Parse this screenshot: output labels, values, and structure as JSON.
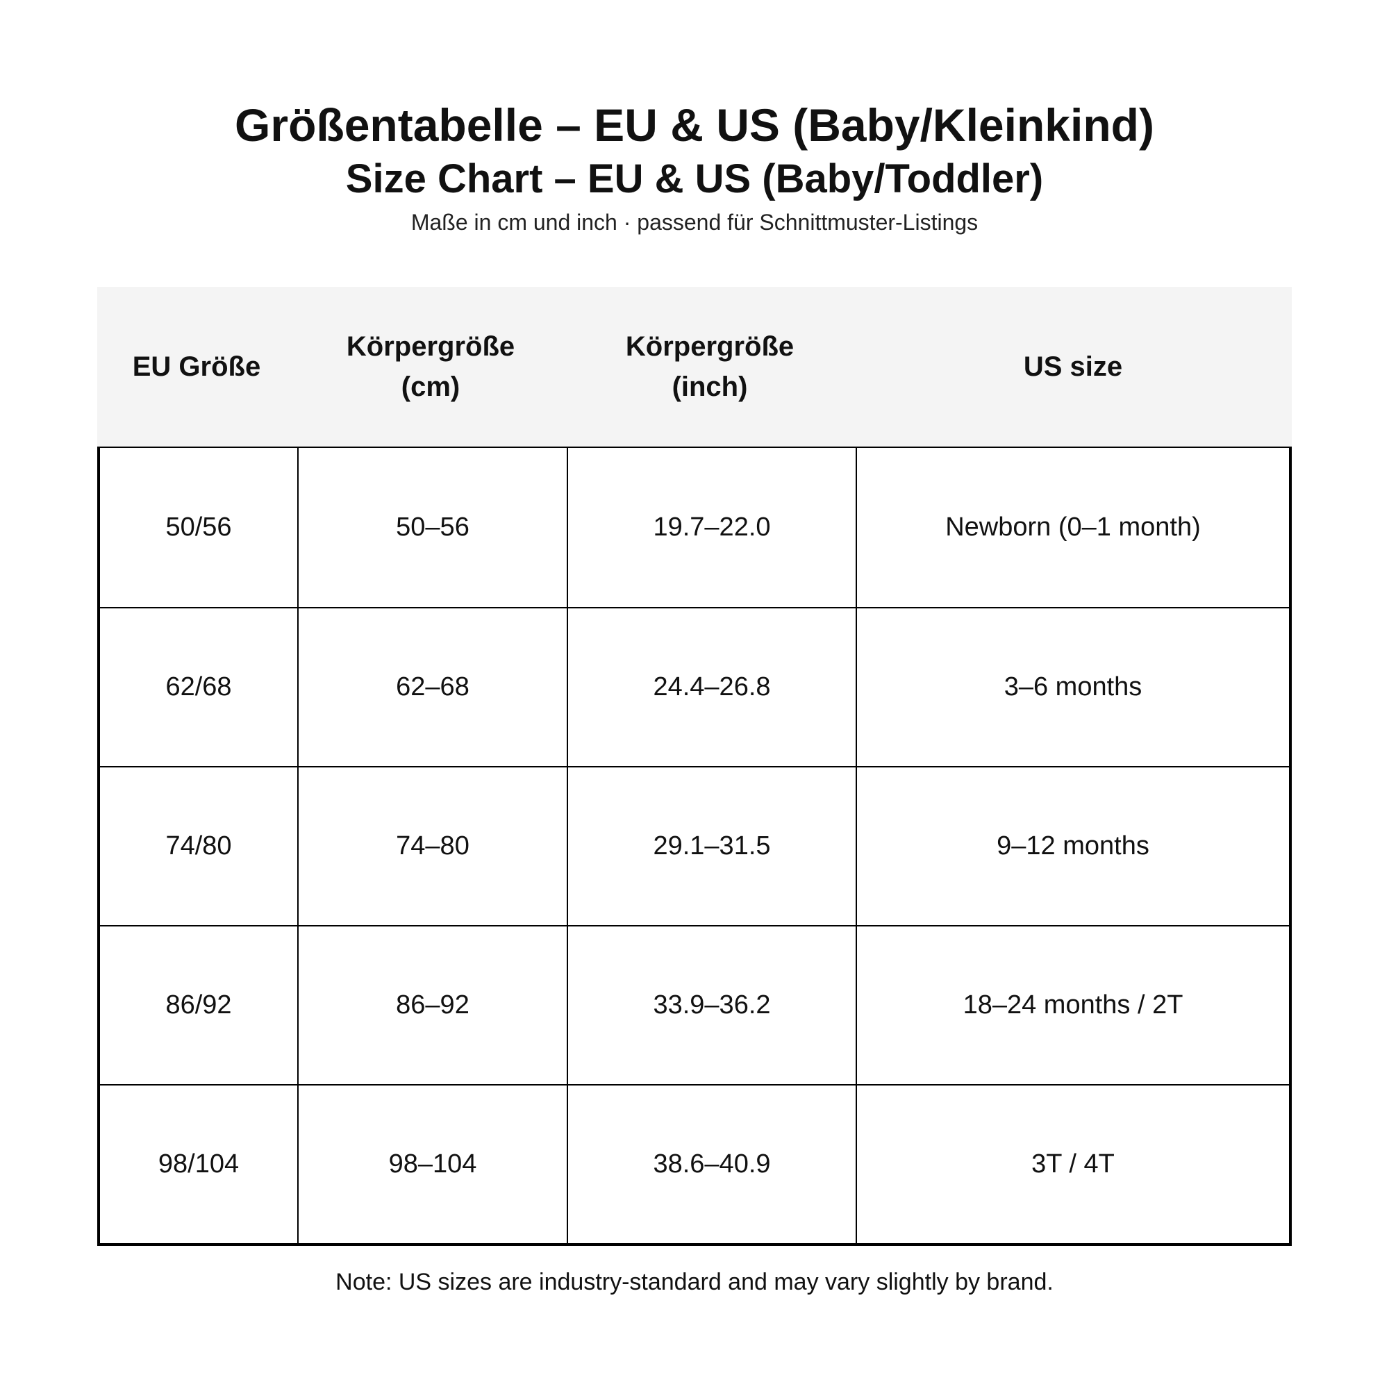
{
  "title_de": "Größentabelle – EU & US (Baby/Kleinkind)",
  "title_en": "Size Chart – EU & US (Baby/Toddler)",
  "subtitle": "Maße in cm und inch · passend für Schnittmuster-Listings",
  "table": {
    "headers": [
      "EU Größe",
      "Körpergröße\n(cm)",
      "Körpergröße\n(inch)",
      "US size"
    ],
    "rows": [
      [
        "50/56",
        "50–56",
        "19.7–22.0",
        "Newborn (0–1 month)"
      ],
      [
        "62/68",
        "62–68",
        "24.4–26.8",
        "3–6 months"
      ],
      [
        "74/80",
        "74–80",
        "29.1–31.5",
        "9–12 months"
      ],
      [
        "86/92",
        "86–92",
        "33.9–36.2",
        "18–24 months / 2T"
      ],
      [
        "98/104",
        "98–104",
        "38.6–40.9",
        "3T / 4T"
      ]
    ]
  },
  "note": "Note: US sizes are industry-standard and may vary slightly by brand."
}
